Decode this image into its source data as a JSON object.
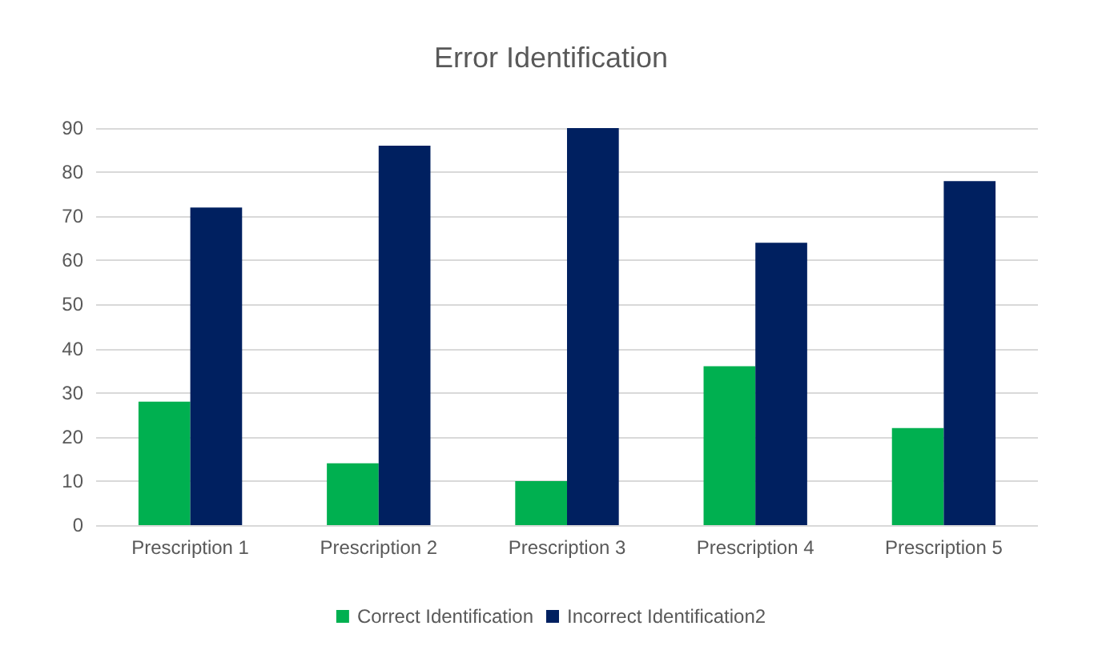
{
  "chart_data": {
    "type": "bar",
    "title": "Error Identification",
    "categories": [
      "Prescription 1",
      "Prescription 2",
      "Prescription 3",
      "Prescription 4",
      "Prescription 5"
    ],
    "series": [
      {
        "name": "Correct Identification",
        "color": "#00b050",
        "values": [
          28,
          14,
          10,
          36,
          22
        ]
      },
      {
        "name": "Incorrect Identification2",
        "color": "#002060",
        "values": [
          72,
          86,
          90,
          64,
          78
        ]
      }
    ],
    "ylim": [
      0,
      90
    ],
    "yticks": [
      0,
      10,
      20,
      30,
      40,
      50,
      60,
      70,
      80,
      90
    ],
    "grid": "y",
    "legend": "bottom"
  }
}
